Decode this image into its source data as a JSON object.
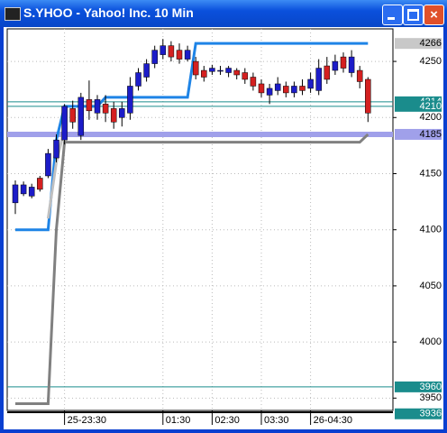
{
  "window": {
    "title": "S.YHOO - Yahoo! Inc. 10 Min"
  },
  "chart_data": {
    "type": "candlestick",
    "categories": [
      null,
      null,
      null,
      null,
      null,
      null,
      "25-23:30",
      null,
      null,
      null,
      null,
      null,
      null,
      null,
      null,
      null,
      null,
      null,
      "01:30",
      null,
      null,
      null,
      null,
      null,
      "02:30",
      null,
      null,
      null,
      null,
      null,
      "03:30",
      null,
      null,
      null,
      null,
      null,
      "26-04:30",
      null,
      null,
      null,
      null,
      null,
      null,
      null
    ],
    "open": [
      4124,
      4132,
      4130,
      4146,
      4148,
      4164,
      4180,
      4208,
      4184,
      4216,
      4204,
      4212,
      4208,
      4200,
      4204,
      4228,
      4236,
      4248,
      4256,
      4264,
      4260,
      4252,
      4250,
      4242,
      4241,
      4242,
      4240,
      4242,
      4240,
      4236,
      4230,
      4220,
      4224,
      4228,
      4222,
      4228,
      4226,
      4224,
      4246,
      4242,
      4254,
      4240,
      4242,
      4234
    ],
    "high": [
      4144,
      4143,
      4141,
      4148,
      4172,
      4185,
      4212,
      4215,
      4222,
      4233,
      4220,
      4220,
      4214,
      4214,
      4236,
      4244,
      4252,
      4264,
      4270,
      4268,
      4266,
      4264,
      4254,
      4246,
      4247,
      4246,
      4246,
      4244,
      4244,
      4240,
      4234,
      4230,
      4236,
      4232,
      4232,
      4234,
      4240,
      4252,
      4254,
      4256,
      4258,
      4260,
      4246,
      4236
    ],
    "low": [
      4114,
      4130,
      4128,
      4134,
      4146,
      4160,
      4176,
      4190,
      4180,
      4198,
      4198,
      4196,
      4190,
      4192,
      4198,
      4224,
      4232,
      4244,
      4252,
      4250,
      4248,
      4250,
      4234,
      4232,
      4238,
      4238,
      4236,
      4234,
      4230,
      4224,
      4218,
      4212,
      4220,
      4218,
      4218,
      4220,
      4222,
      4220,
      4230,
      4238,
      4240,
      4236,
      4226,
      4196
    ],
    "close": [
      4140,
      4140,
      4138,
      4136,
      4168,
      4180,
      4210,
      4196,
      4218,
      4206,
      4216,
      4204,
      4196,
      4208,
      4228,
      4240,
      4248,
      4260,
      4264,
      4254,
      4252,
      4260,
      4238,
      4236,
      4244,
      4242,
      4244,
      4238,
      4234,
      4228,
      4222,
      4226,
      4230,
      4222,
      4228,
      4224,
      4234,
      4244,
      4234,
      4250,
      4244,
      4254,
      4232,
      4204
    ],
    "up_color": "#1c1cc8",
    "down_color": "#d42020",
    "lines": [
      {
        "color": "#1e84e6",
        "values": [
          4100,
          4100,
          4100,
          4100,
          4100,
          4180,
          4210,
          4210,
          4210,
          4210,
          4210,
          4218,
          4218,
          4218,
          4218,
          4218,
          4218,
          4218,
          4218,
          4218,
          4218,
          4218,
          4266,
          4266,
          4266,
          4266,
          4266,
          4266,
          4266,
          4266,
          4266,
          4266,
          4266,
          4266,
          4266,
          4266,
          4266,
          4266,
          4266,
          4266,
          4266,
          4266,
          4266,
          4266
        ]
      },
      {
        "color": "#808080",
        "values": [
          3945,
          3945,
          3945,
          3945,
          3945,
          4100,
          4178,
          4178,
          4178,
          4178,
          4178,
          4178,
          4178,
          4178,
          4178,
          4178,
          4178,
          4178,
          4178,
          4178,
          4178,
          4178,
          4178,
          4178,
          4178,
          4178,
          4178,
          4178,
          4178,
          4178,
          4178,
          4178,
          4178,
          4178,
          4178,
          4178,
          4178,
          4178,
          4178,
          4178,
          4178,
          4178,
          4178,
          4185
        ]
      },
      {
        "color": "#c0c0c0",
        "values": [
          null,
          null,
          null,
          null,
          4110,
          4160,
          4190,
          null,
          null,
          null,
          null,
          null,
          null,
          null,
          null,
          null,
          null,
          null,
          null,
          null,
          null,
          null,
          null,
          null,
          null,
          null,
          null,
          null,
          null,
          null,
          null,
          null,
          null,
          null,
          null,
          null,
          null,
          null,
          null,
          null,
          null,
          null,
          null,
          null
        ]
      }
    ],
    "price_markers": [
      {
        "value": 4266,
        "color": "#c8c8c8",
        "text_color": "#000000",
        "line": false
      },
      {
        "value": 4214,
        "color": "#1a8c8c",
        "text_color": "#ffffff",
        "line": true
      },
      {
        "value": 4210,
        "color": "#1a8c8c",
        "text_color": "#ffffff",
        "line": true
      },
      {
        "value": 4185,
        "color": "#a0a0ea",
        "text_color": "#000000",
        "line": true
      },
      {
        "value": 3960,
        "color": "#1a8c8c",
        "text_color": "#ffffff",
        "line": true
      },
      {
        "value": 3936,
        "color": "#1a8c8c",
        "text_color": "#ffffff",
        "line": false
      }
    ],
    "ylim": [
      3939,
      4279
    ],
    "yticks": [
      3950,
      4000,
      4050,
      4100,
      4150,
      4200,
      4250
    ],
    "grid": true
  }
}
